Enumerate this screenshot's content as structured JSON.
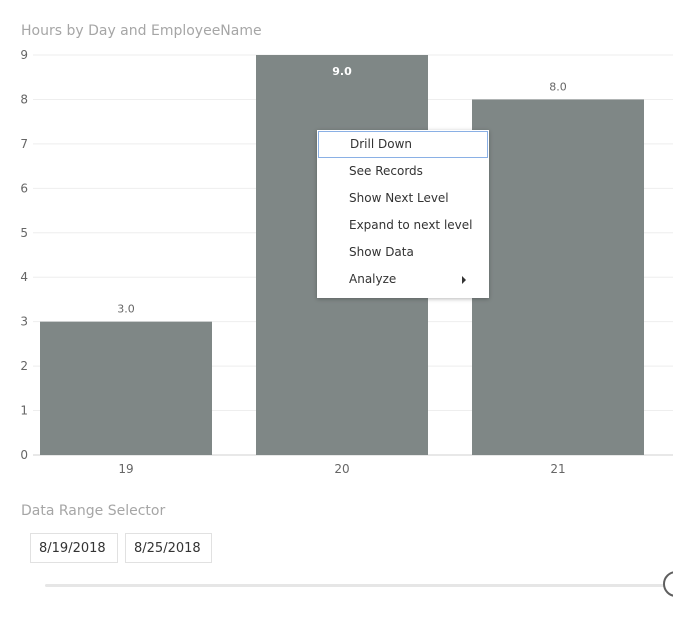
{
  "chart_data": {
    "type": "bar",
    "title": "Hours by Day and EmployeeName",
    "categories": [
      "19",
      "20",
      "21"
    ],
    "values": [
      3.0,
      9.0,
      8.0
    ],
    "data_labels": [
      "3.0",
      "9.0",
      "8.0"
    ],
    "ylim": [
      0,
      9
    ],
    "yticks": [
      "0",
      "1",
      "2",
      "3",
      "4",
      "5",
      "6",
      "7",
      "8",
      "9"
    ],
    "xlabel": "",
    "ylabel": "",
    "grid": true,
    "bar_color": "#7f8786"
  },
  "context_menu": {
    "items": [
      {
        "label": "Drill Down",
        "focused": true
      },
      {
        "label": "See Records"
      },
      {
        "label": "Show Next Level"
      },
      {
        "label": "Expand to next level"
      },
      {
        "label": "Show Data"
      },
      {
        "label": "Analyze",
        "has_submenu": true
      }
    ]
  },
  "date_range": {
    "title": "Data Range Selector",
    "start": "8/19/2018",
    "end": "8/25/2018"
  }
}
